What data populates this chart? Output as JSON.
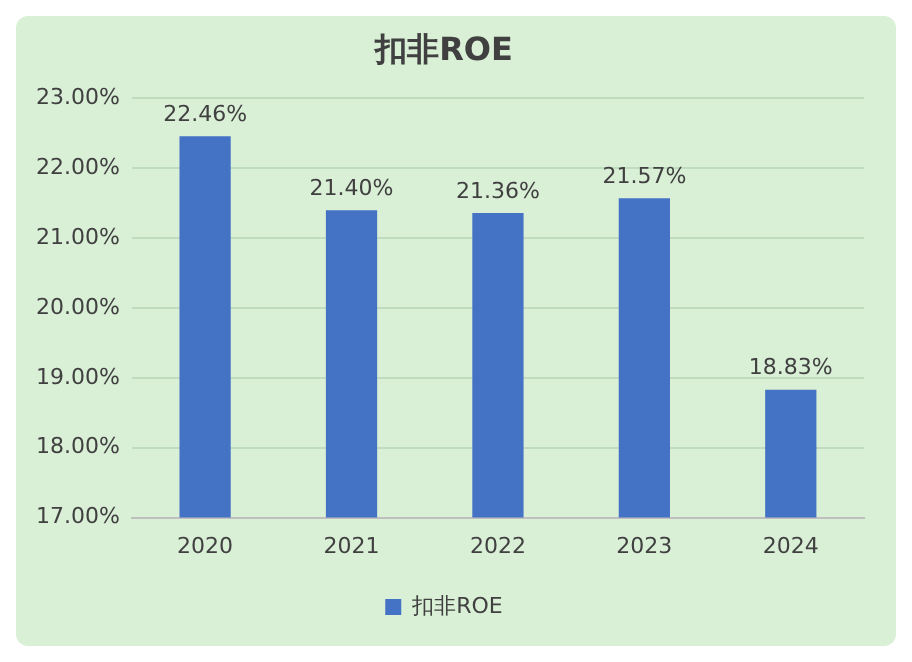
{
  "chart_data": {
    "type": "bar",
    "title": "扣非ROE",
    "categories": [
      "2020",
      "2021",
      "2022",
      "2023",
      "2024"
    ],
    "series": [
      {
        "name": "扣非ROE",
        "color": "#4472c4",
        "values": [
          22.46,
          21.4,
          21.36,
          21.57,
          18.83
        ],
        "value_labels": [
          "22.46%",
          "21.40%",
          "21.36%",
          "21.57%",
          "18.83%"
        ]
      }
    ],
    "ylim": [
      17,
      23
    ],
    "yticks": [
      {
        "value": 17,
        "label": "17.00%"
      },
      {
        "value": 18,
        "label": "18.00%"
      },
      {
        "value": 19,
        "label": "19.00%"
      },
      {
        "value": 20,
        "label": "20.00%"
      },
      {
        "value": 21,
        "label": "21.00%"
      },
      {
        "value": 22,
        "label": "22.00%"
      },
      {
        "value": 23,
        "label": "23.00%"
      }
    ],
    "grid": "y",
    "legend": "bottom"
  }
}
